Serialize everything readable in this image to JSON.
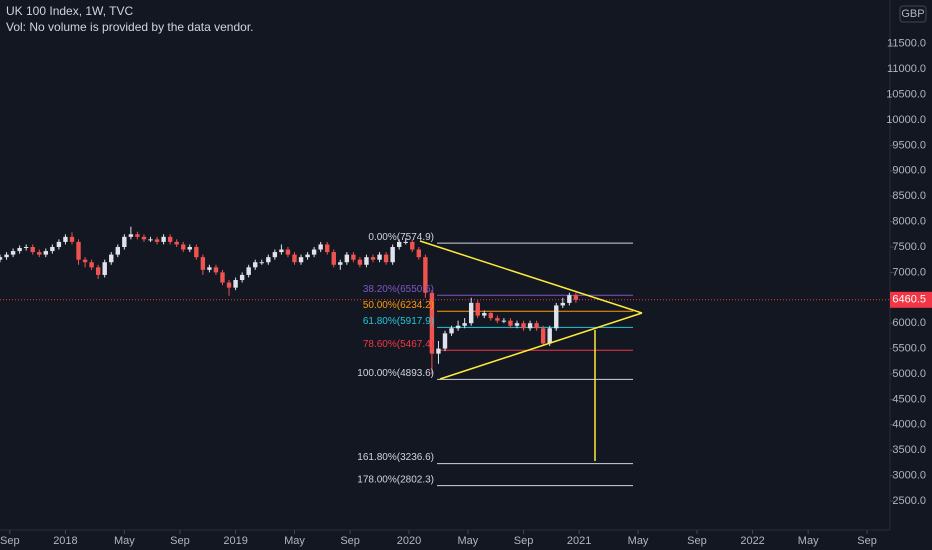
{
  "chart_data": {
    "type": "candlestick",
    "title": "UK 100 Index, 1W, TVC",
    "subtitle": "Vol: No volume is provided by the data vendor.",
    "currency": "GBP",
    "up_color": "#e0e3eb",
    "down_color": "#ef5350",
    "last_price": 6460.5,
    "last_price_color": "#f23645",
    "xlim": [
      0,
      272
    ],
    "xticks": [
      {
        "value": 3,
        "label": "Sep"
      },
      {
        "value": 20,
        "label": "2018"
      },
      {
        "value": 38,
        "label": "May"
      },
      {
        "value": 55,
        "label": "Sep"
      },
      {
        "value": 72,
        "label": "2019"
      },
      {
        "value": 90,
        "label": "May"
      },
      {
        "value": 107,
        "label": "Sep"
      },
      {
        "value": 125,
        "label": "2020"
      },
      {
        "value": 143,
        "label": "May"
      },
      {
        "value": 160,
        "label": "Sep"
      },
      {
        "value": 177,
        "label": "2021"
      },
      {
        "value": 195,
        "label": "May"
      },
      {
        "value": 213,
        "label": "Sep"
      },
      {
        "value": 230,
        "label": "2022"
      },
      {
        "value": 247,
        "label": "May"
      },
      {
        "value": 265,
        "label": "Sep"
      }
    ],
    "ylim": [
      1929,
      12362
    ],
    "yticks": [
      {
        "value": 2500,
        "label": "2500.0"
      },
      {
        "value": 3000,
        "label": "3000.0"
      },
      {
        "value": 3500,
        "label": "3500.0"
      },
      {
        "value": 4000,
        "label": "4000.0"
      },
      {
        "value": 4500,
        "label": "4500.0"
      },
      {
        "value": 5000,
        "label": "5000.0"
      },
      {
        "value": 5500,
        "label": "5500.0"
      },
      {
        "value": 6000,
        "label": "6000.0"
      },
      {
        "value": 6500,
        "label": "6500.0"
      },
      {
        "value": 7000,
        "label": "7000.0"
      },
      {
        "value": 7500,
        "label": "7500.0"
      },
      {
        "value": 8000,
        "label": "8000.0"
      },
      {
        "value": 8500,
        "label": "8500.0"
      },
      {
        "value": 9000,
        "label": "9000.0"
      },
      {
        "value": 9500,
        "label": "9500.0"
      },
      {
        "value": 10000,
        "label": "10000.0"
      },
      {
        "value": 10500,
        "label": "10500.0"
      },
      {
        "value": 11000,
        "label": "11000.0"
      },
      {
        "value": 11500,
        "label": "11500.0"
      }
    ],
    "fib_levels": [
      {
        "label": "0.00%(7574.9)",
        "value": 7574.9,
        "color": "#d1d4dc"
      },
      {
        "label": "38.20%(6550.6)",
        "value": 6550.6,
        "color": "#7e57c2"
      },
      {
        "label": "50.00%(6234.2)",
        "value": 6234.2,
        "color": "#ff9800"
      },
      {
        "label": "61.80%(5917.9)",
        "value": 5917.9,
        "color": "#26c6da"
      },
      {
        "label": "78.60%(5467.4)",
        "value": 5467.4,
        "color": "#f23645"
      },
      {
        "label": "100.00%(4893.6)",
        "value": 4893.6,
        "color": "#d1d4dc"
      },
      {
        "label": "161.80%(3236.6)",
        "value": 3236.6,
        "color": "#d1d4dc"
      },
      {
        "label": "178.00%(2802.3)",
        "value": 2802.3,
        "color": "#d1d4dc"
      }
    ],
    "candles": {
      "x": [
        0,
        2,
        4,
        6,
        8,
        10,
        12,
        14,
        16,
        18,
        20,
        22,
        24,
        26,
        28,
        30,
        32,
        34,
        36,
        38,
        40,
        42,
        44,
        46,
        48,
        50,
        52,
        54,
        56,
        58,
        60,
        62,
        64,
        66,
        68,
        70,
        72,
        74,
        76,
        78,
        80,
        82,
        84,
        86,
        88,
        90,
        92,
        94,
        96,
        98,
        100,
        102,
        104,
        106,
        108,
        110,
        112,
        114,
        116,
        118,
        120,
        122,
        124,
        126,
        128,
        130,
        132,
        134,
        136,
        138,
        140,
        142,
        144,
        146,
        148,
        150,
        152,
        154,
        156,
        158,
        160,
        162,
        164,
        166,
        168,
        170,
        172,
        174,
        176
      ],
      "open": [
        7250,
        7300,
        7350,
        7420,
        7480,
        7500,
        7400,
        7350,
        7420,
        7500,
        7600,
        7700,
        7600,
        7250,
        7200,
        7100,
        6950,
        7200,
        7350,
        7500,
        7700,
        7750,
        7700,
        7650,
        7650,
        7600,
        7700,
        7600,
        7550,
        7450,
        7500,
        7300,
        7050,
        7100,
        7000,
        6800,
        6700,
        6850,
        6950,
        7100,
        7200,
        7200,
        7300,
        7400,
        7450,
        7350,
        7200,
        7300,
        7350,
        7450,
        7550,
        7400,
        7150,
        7200,
        7350,
        7250,
        7150,
        7300,
        7250,
        7350,
        7200,
        7500,
        7600,
        7600,
        7450,
        7300,
        6600,
        5400,
        5500,
        5800,
        5900,
        5950,
        6000,
        6400,
        6150,
        6200,
        6100,
        6050,
        6050,
        5950,
        6000,
        5900,
        6000,
        5900,
        5600,
        5900,
        6350,
        6400,
        6550
      ],
      "high": [
        7350,
        7400,
        7470,
        7530,
        7550,
        7550,
        7450,
        7470,
        7550,
        7650,
        7750,
        7790,
        7650,
        7300,
        7250,
        7150,
        7250,
        7400,
        7550,
        7750,
        7900,
        7800,
        7750,
        7700,
        7700,
        7750,
        7750,
        7650,
        7600,
        7550,
        7550,
        7350,
        7150,
        7150,
        7050,
        6850,
        6900,
        7000,
        7150,
        7250,
        7250,
        7350,
        7450,
        7550,
        7500,
        7400,
        7350,
        7400,
        7500,
        7600,
        7600,
        7450,
        7250,
        7400,
        7400,
        7300,
        7350,
        7350,
        7400,
        7400,
        7550,
        7650,
        7675,
        7650,
        7500,
        7350,
        6650,
        5650,
        5850,
        5950,
        6050,
        6100,
        6500,
        6450,
        6250,
        6250,
        6150,
        6100,
        6100,
        6050,
        6050,
        6050,
        6050,
        5950,
        5950,
        6400,
        6500,
        6600,
        6600
      ],
      "low": [
        7200,
        7250,
        7300,
        7370,
        7430,
        7350,
        7300,
        7300,
        7370,
        7450,
        7550,
        7550,
        7150,
        7100,
        7050,
        6870,
        6900,
        7150,
        7300,
        7450,
        7650,
        7650,
        7600,
        7600,
        7550,
        7550,
        7550,
        7500,
        7400,
        7400,
        7250,
        6950,
        7000,
        6950,
        6750,
        6540,
        6650,
        6800,
        6900,
        7050,
        7150,
        7150,
        7250,
        7350,
        7300,
        7150,
        7150,
        7250,
        7300,
        7400,
        7350,
        7100,
        7050,
        7150,
        7200,
        7100,
        7100,
        7200,
        7200,
        7150,
        7150,
        7450,
        7550,
        7400,
        7250,
        6500,
        4994,
        5200,
        5450,
        5750,
        5850,
        5900,
        5950,
        6100,
        6100,
        6050,
        6000,
        6000,
        5900,
        5900,
        5850,
        5850,
        5850,
        5550,
        5550,
        5850,
        6300,
        6350,
        6400
      ],
      "close": [
        7300,
        7350,
        7420,
        7480,
        7500,
        7400,
        7350,
        7420,
        7500,
        7600,
        7700,
        7600,
        7250,
        7200,
        7100,
        6950,
        7200,
        7350,
        7500,
        7700,
        7750,
        7700,
        7650,
        7650,
        7600,
        7700,
        7600,
        7550,
        7450,
        7500,
        7300,
        7050,
        7100,
        7000,
        6800,
        6700,
        6850,
        6950,
        7100,
        7200,
        7200,
        7300,
        7400,
        7450,
        7350,
        7200,
        7300,
        7350,
        7450,
        7550,
        7400,
        7150,
        7200,
        7350,
        7250,
        7150,
        7300,
        7250,
        7350,
        7200,
        7500,
        7600,
        7600,
        7450,
        7300,
        6600,
        5400,
        5500,
        5800,
        5900,
        5950,
        6000,
        6400,
        6150,
        6200,
        6100,
        6050,
        6050,
        5950,
        6000,
        5900,
        6000,
        5900,
        5600,
        5900,
        6350,
        6400,
        6550,
        6460.5
      ]
    }
  }
}
